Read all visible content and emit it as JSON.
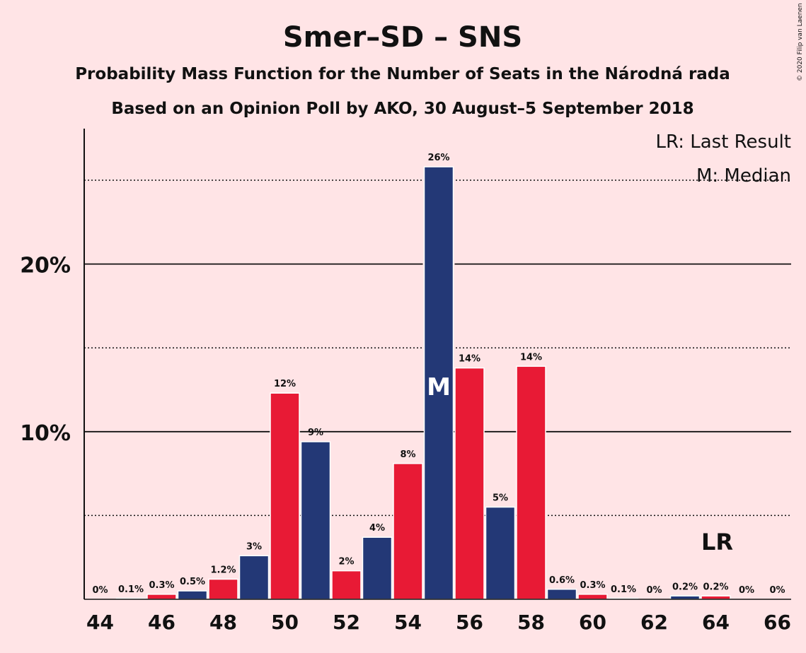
{
  "chart_data": {
    "type": "bar",
    "title": "Smer–SD – SNS",
    "subtitle1": "Probability Mass Function for the Number of Seats in the Národná rada",
    "subtitle2": "Based on an Opinion Poll by AKO, 30 August–5 September 2018",
    "copyright": "© 2020 Filip van Laenen",
    "legend": {
      "lr": "LR: Last Result",
      "median": "M: Median"
    },
    "last_result_label": "LR",
    "last_result_seat": 64,
    "median_label": "M",
    "median_seat": 55,
    "ylim": [
      0,
      28
    ],
    "y_ticks": [
      {
        "value": 10,
        "label": "10%"
      },
      {
        "value": 20,
        "label": "20%"
      }
    ],
    "y_minor_gridlines": [
      5,
      15,
      25
    ],
    "x_tick_labels": [
      "44",
      "46",
      "48",
      "50",
      "52",
      "54",
      "56",
      "58",
      "60",
      "62",
      "64",
      "66"
    ],
    "colors": {
      "odd": "#233876",
      "even": "#e81a35",
      "background": "#ffe4e6"
    },
    "bars": [
      {
        "seat": 44,
        "value": 0,
        "label": "0%"
      },
      {
        "seat": 45,
        "value": 0.05,
        "label": "0.1%"
      },
      {
        "seat": 46,
        "value": 0.3,
        "label": "0.3%"
      },
      {
        "seat": 47,
        "value": 0.5,
        "label": "0.5%"
      },
      {
        "seat": 48,
        "value": 1.2,
        "label": "1.2%"
      },
      {
        "seat": 49,
        "value": 2.6,
        "label": "3%"
      },
      {
        "seat": 50,
        "value": 12.3,
        "label": "12%"
      },
      {
        "seat": 51,
        "value": 9.4,
        "label": "9%"
      },
      {
        "seat": 52,
        "value": 1.7,
        "label": "2%"
      },
      {
        "seat": 53,
        "value": 3.7,
        "label": "4%"
      },
      {
        "seat": 54,
        "value": 8.1,
        "label": "8%"
      },
      {
        "seat": 55,
        "value": 25.8,
        "label": "26%"
      },
      {
        "seat": 56,
        "value": 13.8,
        "label": "14%"
      },
      {
        "seat": 57,
        "value": 5.5,
        "label": "5%"
      },
      {
        "seat": 58,
        "value": 13.9,
        "label": "14%"
      },
      {
        "seat": 59,
        "value": 0.6,
        "label": "0.6%"
      },
      {
        "seat": 60,
        "value": 0.3,
        "label": "0.3%"
      },
      {
        "seat": 61,
        "value": 0.05,
        "label": "0.1%"
      },
      {
        "seat": 62,
        "value": 0,
        "label": "0%"
      },
      {
        "seat": 63,
        "value": 0.2,
        "label": "0.2%"
      },
      {
        "seat": 64,
        "value": 0.2,
        "label": "0.2%"
      },
      {
        "seat": 65,
        "value": 0,
        "label": "0%"
      },
      {
        "seat": 66,
        "value": 0,
        "label": "0%"
      }
    ]
  }
}
